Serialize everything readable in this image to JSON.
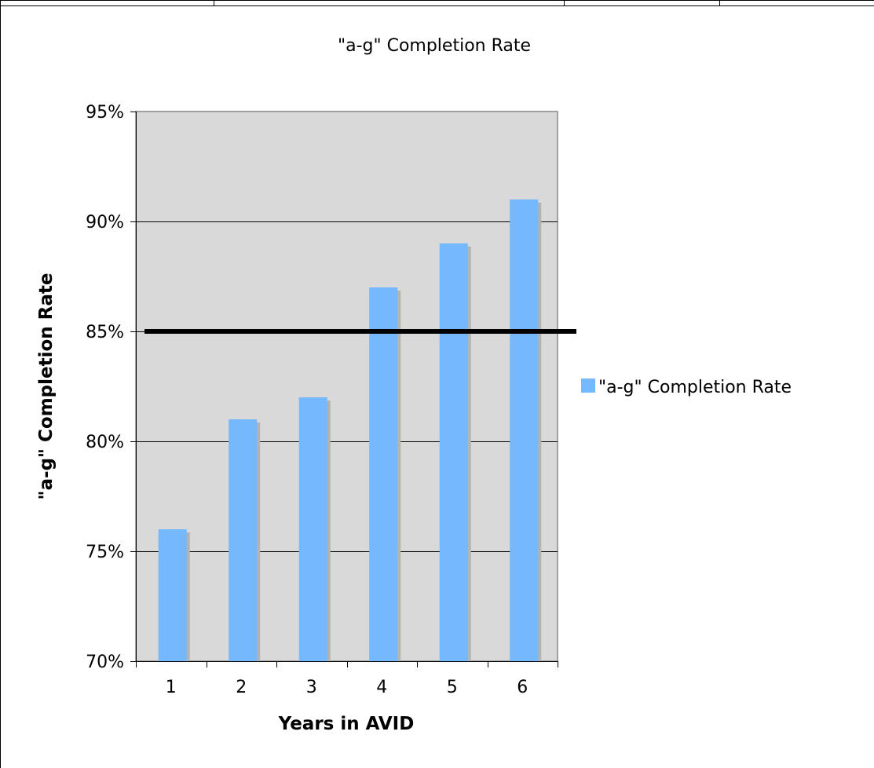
{
  "chart_data": {
    "type": "bar",
    "title": "\"a-g\" Completion Rate",
    "xlabel": "Years in AVID",
    "ylabel": "\"a-g\" Completion Rate",
    "categories": [
      "1",
      "2",
      "3",
      "4",
      "5",
      "6"
    ],
    "series": [
      {
        "name": "\"a-g\" Completion Rate",
        "values": [
          0.76,
          0.81,
          0.82,
          0.87,
          0.89,
          0.91
        ]
      }
    ],
    "ylim": [
      0.7,
      0.95
    ],
    "yticks": [
      0.7,
      0.75,
      0.8,
      0.85,
      0.9,
      0.95
    ],
    "ytick_labels": [
      "70%",
      "75%",
      "80%",
      "85%",
      "90%",
      "95%"
    ],
    "reference_line": 0.85,
    "grid": true,
    "legend_position": "right",
    "colors": {
      "bar": "#75b8fe",
      "bar_shadow": "#b3b3b3",
      "plot_bg": "#d9d9d9",
      "gridline": "#000000",
      "reference_line": "#000000"
    }
  }
}
